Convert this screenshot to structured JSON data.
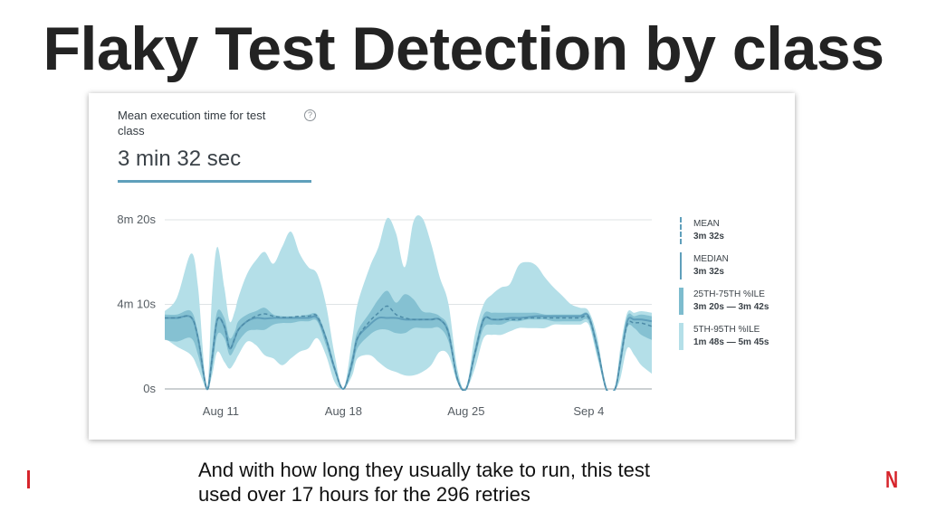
{
  "slide": {
    "title": "Flaky Test Detection by class",
    "caption_line1": "And with how long they usually take to run, this test",
    "caption_line2": "used over 17 hours for the 296 retries",
    "logo_text": "N"
  },
  "card": {
    "metric_label_line1": "Mean execution time for test",
    "metric_label_line2": "class",
    "help_icon": "question-circle-icon",
    "metric_value": "3 min 32 sec"
  },
  "legend": [
    {
      "name": "MEAN",
      "range": "3m 32s",
      "style": "dashed-line"
    },
    {
      "name": "MEDIAN",
      "range": "3m 32s",
      "style": "solid-line"
    },
    {
      "name": "25TH-75TH %ILE",
      "range": "3m 20s — 3m 42s",
      "style": "band-dark"
    },
    {
      "name": "5TH-95TH %ILE",
      "range": "1m 48s — 5m 45s",
      "style": "band-light"
    }
  ],
  "colors": {
    "line": "#5f9fbb",
    "band_iqr": "#7dbcce",
    "band_p90": "#b4dfe8",
    "grid": "#dfe3e6",
    "accent_red": "#d6242b"
  },
  "chart_data": {
    "type": "area",
    "title": "",
    "xlabel": "",
    "ylabel": "",
    "y_unit": "seconds",
    "ylim": [
      0,
      500
    ],
    "y_ticks": [
      {
        "value": 0,
        "label": "0s"
      },
      {
        "value": 250,
        "label": "4m 10s"
      },
      {
        "value": 500,
        "label": "8m 20s"
      }
    ],
    "x_ticks": [
      {
        "day": 11,
        "label": "Aug 11"
      },
      {
        "day": 18,
        "label": "Aug 18"
      },
      {
        "day": 25,
        "label": "Aug 25"
      },
      {
        "day": 32,
        "label": "Sep 4"
      }
    ],
    "xlim": [
      7.8,
      35.6
    ],
    "x": [
      7.8,
      8.5,
      9.3,
      9.7,
      10.2,
      10.5,
      10.8,
      11.2,
      11.5,
      11.8,
      12.0,
      12.5,
      13.0,
      13.5,
      14.0,
      14.5,
      15.0,
      15.5,
      16.0,
      16.5,
      17.0,
      17.5,
      18.0,
      18.5,
      18.8,
      19.5,
      20.0,
      20.5,
      21.0,
      21.5,
      22.0,
      22.5,
      23.0,
      23.5,
      24.0,
      24.5,
      25.0,
      25.5,
      26.0,
      26.5,
      27.0,
      27.5,
      28.0,
      28.5,
      29.0,
      29.5,
      30.0,
      30.5,
      31.0,
      31.5,
      32.0,
      32.5,
      33.0,
      33.5,
      33.8,
      34.2,
      34.6,
      35.0,
      35.6
    ],
    "series": [
      {
        "name": "MEDIAN",
        "values": [
          210,
          210,
          212,
          150,
          0,
          90,
          205,
          185,
          120,
          150,
          175,
          200,
          210,
          208,
          210,
          210,
          210,
          210,
          210,
          210,
          150,
          60,
          0,
          80,
          150,
          190,
          210,
          210,
          210,
          205,
          205,
          205,
          205,
          205,
          165,
          30,
          0,
          105,
          205,
          205,
          205,
          210,
          210,
          212,
          215,
          215,
          215,
          215,
          215,
          215,
          215,
          120,
          0,
          0,
          80,
          200,
          205,
          205,
          200
        ]
      },
      {
        "name": "MEAN",
        "values": [
          210,
          210,
          212,
          150,
          0,
          90,
          205,
          185,
          120,
          150,
          175,
          200,
          215,
          222,
          215,
          212,
          212,
          215,
          215,
          215,
          150,
          60,
          0,
          80,
          150,
          200,
          225,
          245,
          220,
          210,
          205,
          205,
          205,
          205,
          165,
          30,
          0,
          105,
          205,
          205,
          205,
          205,
          205,
          210,
          210,
          210,
          210,
          210,
          210,
          210,
          210,
          120,
          0,
          0,
          80,
          190,
          195,
          195,
          185
        ]
      },
      {
        "name": "25TH-75TH %ILE",
        "lower": [
          145,
          140,
          150,
          100,
          0,
          60,
          160,
          150,
          100,
          120,
          140,
          170,
          175,
          175,
          190,
          195,
          195,
          200,
          200,
          200,
          130,
          50,
          0,
          60,
          120,
          160,
          175,
          175,
          165,
          165,
          180,
          180,
          180,
          180,
          140,
          25,
          0,
          90,
          180,
          190,
          190,
          200,
          200,
          205,
          205,
          205,
          200,
          200,
          200,
          200,
          200,
          100,
          0,
          0,
          60,
          180,
          180,
          160,
          145
        ],
        "upper": [
          220,
          220,
          230,
          160,
          0,
          120,
          230,
          210,
          150,
          170,
          200,
          220,
          230,
          240,
          220,
          215,
          215,
          215,
          220,
          220,
          160,
          70,
          0,
          100,
          170,
          225,
          265,
          290,
          255,
          280,
          265,
          230,
          225,
          215,
          180,
          40,
          0,
          120,
          220,
          225,
          225,
          225,
          225,
          225,
          225,
          220,
          220,
          220,
          220,
          220,
          220,
          130,
          0,
          0,
          100,
          215,
          215,
          220,
          215
        ]
      },
      {
        "name": "5TH-95TH %ILE",
        "lower": [
          150,
          125,
          100,
          60,
          0,
          40,
          110,
          80,
          60,
          80,
          100,
          140,
          130,
          100,
          90,
          70,
          90,
          110,
          120,
          150,
          100,
          20,
          0,
          40,
          90,
          100,
          80,
          60,
          50,
          40,
          40,
          50,
          70,
          110,
          100,
          20,
          0,
          60,
          150,
          160,
          160,
          170,
          180,
          180,
          180,
          180,
          190,
          190,
          190,
          190,
          190,
          90,
          0,
          0,
          30,
          120,
          100,
          70,
          45
        ],
        "upper": [
          230,
          270,
          400,
          300,
          0,
          280,
          420,
          300,
          200,
          230,
          270,
          340,
          380,
          405,
          370,
          420,
          465,
          400,
          360,
          340,
          250,
          100,
          0,
          150,
          250,
          360,
          420,
          505,
          460,
          360,
          495,
          505,
          430,
          330,
          250,
          60,
          0,
          160,
          250,
          280,
          300,
          310,
          365,
          375,
          365,
          330,
          300,
          275,
          250,
          240,
          230,
          150,
          0,
          0,
          120,
          225,
          225,
          230,
          225
        ]
      }
    ]
  }
}
